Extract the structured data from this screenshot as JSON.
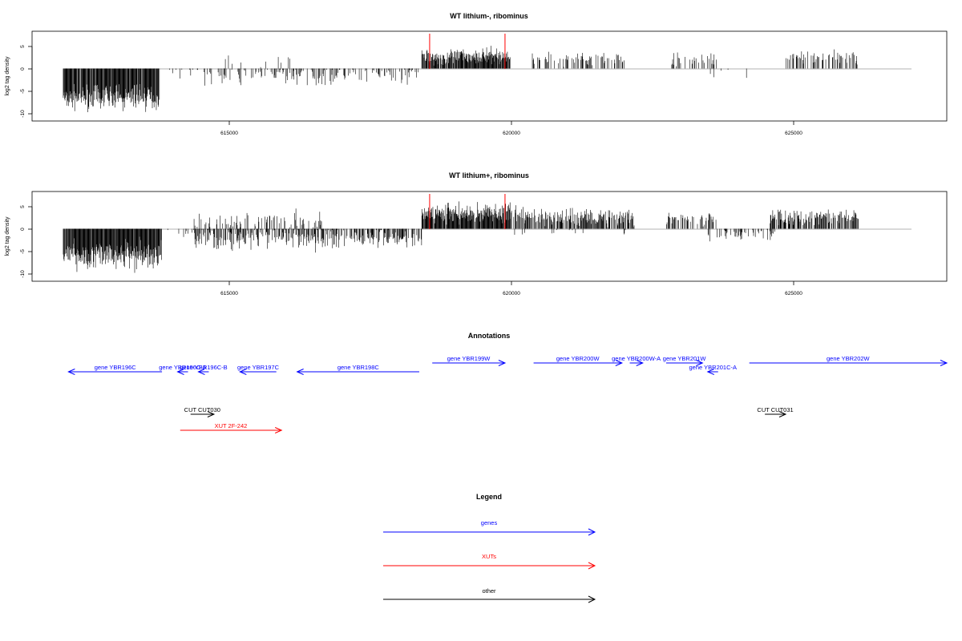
{
  "chart_data": [
    {
      "type": "bar",
      "title": "WT lithium-, ribominus",
      "ylabel": "log2 tag density",
      "xlim": [
        611200,
        628800
      ],
      "ylim": [
        -12,
        8.5
      ],
      "x_ticks": [
        615000,
        620000,
        625000
      ],
      "x_tick_labels": [
        "615000",
        "620000",
        "625000"
      ],
      "y_ticks": [
        -10,
        -5,
        0,
        5
      ],
      "y_tick_labels": [
        "-10",
        "-5",
        "0",
        "5"
      ],
      "markers": [
        618850,
        620300
      ],
      "marker_color": "#ff0000",
      "segments": [
        {
          "start": 611800,
          "end": 613650,
          "density": 0.95,
          "mean": -6.5,
          "amp": 2.0
        },
        {
          "start": 613700,
          "end": 614500,
          "density": 0.05,
          "mean": -0.5,
          "amp": 1.0
        },
        {
          "start": 614500,
          "end": 618700,
          "density": 0.3,
          "mean": -1.6,
          "amp": 1.6
        },
        {
          "start": 614800,
          "end": 616200,
          "density": 0.06,
          "mean": 2.0,
          "amp": 1.5
        },
        {
          "start": 618700,
          "end": 620400,
          "density": 0.9,
          "mean": 2.7,
          "amp": 1.3
        },
        {
          "start": 620800,
          "end": 622600,
          "density": 0.3,
          "mean": 2.3,
          "amp": 1.1
        },
        {
          "start": 623500,
          "end": 624400,
          "density": 0.3,
          "mean": 2.0,
          "amp": 1.0
        },
        {
          "start": 624200,
          "end": 625000,
          "density": 0.05,
          "mean": -1.3,
          "amp": 1.3
        },
        {
          "start": 625700,
          "end": 627100,
          "density": 0.35,
          "mean": 2.6,
          "amp": 1.2
        }
      ]
    },
    {
      "type": "bar",
      "title": "WT lithium+, ribominus",
      "ylabel": "log2 tag density",
      "xlim": [
        611200,
        628800
      ],
      "ylim": [
        -12,
        8.5
      ],
      "x_ticks": [
        615000,
        620000,
        625000
      ],
      "x_tick_labels": [
        "615000",
        "620000",
        "625000"
      ],
      "y_ticks": [
        -10,
        -5,
        0,
        5
      ],
      "y_tick_labels": [
        "-10",
        "-5",
        "0",
        "5"
      ],
      "markers": [
        618850,
        620300
      ],
      "marker_color": "#ff0000",
      "segments": [
        {
          "start": 611800,
          "end": 613700,
          "density": 0.95,
          "mean": -6.0,
          "amp": 2.2
        },
        {
          "start": 613700,
          "end": 614300,
          "density": 0.1,
          "mean": -0.8,
          "amp": 1.0
        },
        {
          "start": 614300,
          "end": 618700,
          "density": 0.55,
          "mean": -2.2,
          "amp": 1.8
        },
        {
          "start": 614300,
          "end": 616800,
          "density": 0.25,
          "mean": 2.0,
          "amp": 1.4
        },
        {
          "start": 618700,
          "end": 620400,
          "density": 0.95,
          "mean": 3.6,
          "amp": 1.6
        },
        {
          "start": 620400,
          "end": 622800,
          "density": 0.6,
          "mean": 2.7,
          "amp": 1.4
        },
        {
          "start": 620400,
          "end": 622800,
          "density": 0.05,
          "mean": -1.0,
          "amp": 0.8
        },
        {
          "start": 623400,
          "end": 624400,
          "density": 0.4,
          "mean": 2.2,
          "amp": 1.0
        },
        {
          "start": 624200,
          "end": 625500,
          "density": 0.25,
          "mean": -1.4,
          "amp": 1.2
        },
        {
          "start": 625400,
          "end": 627100,
          "density": 0.6,
          "mean": 2.6,
          "amp": 1.3
        }
      ]
    }
  ],
  "annotations": {
    "title": "Annotations",
    "genes": [
      {
        "label": "gene YBR196C",
        "start": 611900,
        "end": 613700,
        "strand": "-",
        "row": 1
      },
      {
        "label": "gene YBR196C-A",
        "start": 614000,
        "end": 614200,
        "strand": "-",
        "row": 1
      },
      {
        "label": "gene YBR196C-B",
        "start": 614400,
        "end": 614600,
        "strand": "-",
        "row": 1
      },
      {
        "label": "gene YBR197C",
        "start": 615200,
        "end": 615900,
        "strand": "-",
        "row": 1
      },
      {
        "label": "gene YBR198C",
        "start": 616300,
        "end": 618650,
        "strand": "-",
        "row": 1
      },
      {
        "label": "gene YBR199W",
        "start": 618900,
        "end": 620300,
        "strand": "+",
        "row": 0
      },
      {
        "label": "gene YBR200W",
        "start": 620850,
        "end": 622550,
        "strand": "+",
        "row": 0
      },
      {
        "label": "gene YBR200W-A",
        "start": 622700,
        "end": 622950,
        "strand": "+",
        "row": 0
      },
      {
        "label": "gene YBR201W",
        "start": 623400,
        "end": 624100,
        "strand": "+",
        "row": 0
      },
      {
        "label": "gene YBR201C-A",
        "start": 624200,
        "end": 624400,
        "strand": "-",
        "row": 1
      },
      {
        "label": "gene YBR202W",
        "start": 625000,
        "end": 628800,
        "strand": "+",
        "row": 0
      }
    ],
    "cuts": [
      {
        "label": "CUT CUT030",
        "start": 614250,
        "end": 614700,
        "strand": "+"
      },
      {
        "label": "CUT CUT031",
        "start": 625300,
        "end": 625700,
        "strand": "+"
      }
    ],
    "xuts": [
      {
        "label": "XUT 2F-242",
        "start": 614050,
        "end": 616000,
        "strand": "+"
      }
    ]
  },
  "legend": {
    "title": "Legend",
    "items": [
      {
        "label": "genes",
        "color": "#0000ff"
      },
      {
        "label": "XUTs",
        "color": "#ff0000"
      },
      {
        "label": "other",
        "color": "#000000"
      }
    ]
  },
  "colors": {
    "gene": "#0000ff",
    "xut": "#ff0000",
    "cut": "#000000",
    "bars": "#000000",
    "baseline": "#9a9a9a"
  }
}
